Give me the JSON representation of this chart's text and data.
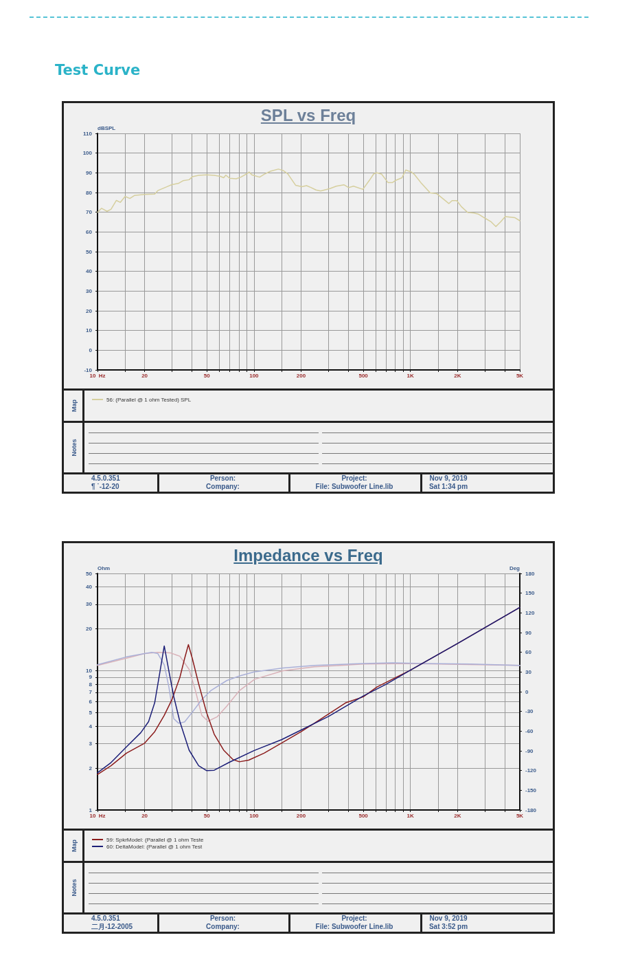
{
  "chart_data": [
    {
      "type": "line",
      "title": "SPL vs Freq",
      "ylabel": "dBSPL",
      "log": "x",
      "grid": true,
      "legend": "bottom",
      "marker": "none",
      "line_style": "solid",
      "xlim": [
        10,
        5000
      ],
      "xticks": [
        {
          "value": 10,
          "label": "10  Hz"
        },
        {
          "value": 15,
          "label": null
        },
        20,
        {
          "value": 30,
          "label": null
        },
        {
          "value": 40,
          "label": null
        },
        50,
        {
          "value": 60,
          "label": null
        },
        {
          "value": 70,
          "label": null
        },
        {
          "value": 80,
          "label": null
        },
        {
          "value": 90,
          "label": null
        },
        100,
        {
          "value": 150,
          "label": null
        },
        200,
        {
          "value": 300,
          "label": null
        },
        {
          "value": 400,
          "label": null
        },
        500,
        {
          "value": 600,
          "label": null
        },
        {
          "value": 700,
          "label": null
        },
        {
          "value": 800,
          "label": null
        },
        {
          "value": 900,
          "label": null
        },
        {
          "value": 1000,
          "label": "1K"
        },
        {
          "value": 1500,
          "label": null
        },
        {
          "value": 2000,
          "label": "2K"
        },
        {
          "value": 3000,
          "label": null
        },
        {
          "value": 4000,
          "label": null
        },
        {
          "value": 5000,
          "label": "5K"
        }
      ],
      "ylim": [
        -10,
        110
      ],
      "yticks": [
        -10,
        0,
        10,
        20,
        30,
        40,
        50,
        60,
        70,
        80,
        90,
        100,
        110
      ],
      "series": [
        {
          "name": "56: (Parallel @ 1 ohm Tested) SPL",
          "color": "#d6cf9e",
          "x": [
            10,
            10.6,
            11.5,
            12.2,
            13.2,
            14,
            15,
            16.1,
            17.2,
            20,
            23.2,
            24.3,
            27.9,
            29.9,
            32.8,
            35.2,
            38.5,
            40.4,
            44.3,
            49.7,
            55.7,
            61.1,
            64,
            66.1,
            70.1,
            76.9,
            82.4,
            90.4,
            93.3,
            96.8,
            108.6,
            116.4,
            127.6,
            143.2,
            153.5,
            164.4,
            184.5,
            202.3,
            216.8,
            232.3,
            248.9,
            266.7,
            306,
            335.7,
            376.7,
            403.6,
            432.5,
            496.6,
            544.5,
            583.4,
            611,
            654.6,
            717.8,
            769.1,
            805.4,
            883,
            933,
            1014,
            1062,
            1164,
            1337,
            1466,
            1607,
            1762,
            1845,
            1977,
            2118,
            2323,
            2547,
            2729,
            2992,
            3281,
            3516,
            3767,
            4036,
            4634,
            5000
          ],
          "values": [
            70,
            72,
            70.5,
            71.5,
            76,
            75,
            78,
            77,
            78.5,
            79,
            79.2,
            81,
            83,
            84,
            84.6,
            86,
            86.5,
            88,
            88.7,
            89,
            88.7,
            88.2,
            87.5,
            88.8,
            87.2,
            87,
            87.8,
            89.6,
            90.4,
            89,
            87.8,
            89.3,
            90.8,
            91.9,
            91.2,
            89.5,
            83.7,
            83,
            83.5,
            82.5,
            81.3,
            80.8,
            82,
            83.2,
            83.9,
            82.5,
            83.2,
            81.6,
            86,
            89.5,
            90,
            89.3,
            85.1,
            85.1,
            86.2,
            87.5,
            91.4,
            90.4,
            89.1,
            85.1,
            79.8,
            79.5,
            77,
            74.4,
            75.9,
            75.9,
            72.8,
            69.9,
            69.6,
            69,
            67,
            65.1,
            62.7,
            65.1,
            67.8,
            67.3,
            65.7
          ]
        }
      ],
      "annotations": [
        "Test Curve",
        "Map",
        "Notes",
        "4.5.0.351",
        "¶  ˙-12-20",
        "Person:",
        "Company:",
        "Project:",
        "File: Subwoofer Line.lib",
        "Nov  9, 2019",
        "Sat  1:34 pm"
      ]
    },
    {
      "type": "line",
      "title": "Impedance vs Freq",
      "ylabel": "Ohm",
      "y2label": "Deg",
      "log": "xy",
      "grid": true,
      "legend": "bottom",
      "marker": "none",
      "line_style": "solid",
      "xlim": [
        10,
        5000
      ],
      "xticks": [
        {
          "value": 10,
          "label": "10  Hz"
        },
        {
          "value": 15,
          "label": null
        },
        20,
        {
          "value": 30,
          "label": null
        },
        {
          "value": 40,
          "label": null
        },
        50,
        {
          "value": 60,
          "label": null
        },
        {
          "value": 70,
          "label": null
        },
        {
          "value": 80,
          "label": null
        },
        {
          "value": 90,
          "label": null
        },
        100,
        {
          "value": 150,
          "label": null
        },
        200,
        {
          "value": 300,
          "label": null
        },
        {
          "value": 400,
          "label": null
        },
        500,
        {
          "value": 600,
          "label": null
        },
        {
          "value": 700,
          "label": null
        },
        {
          "value": 800,
          "label": null
        },
        {
          "value": 900,
          "label": null
        },
        {
          "value": 1000,
          "label": "1K"
        },
        {
          "value": 1500,
          "label": null
        },
        {
          "value": 2000,
          "label": "2K"
        },
        {
          "value": 3000,
          "label": null
        },
        {
          "value": 4000,
          "label": null
        },
        {
          "value": 5000,
          "label": "5K"
        }
      ],
      "ylim": [
        1,
        50
      ],
      "yticks": [
        1,
        2,
        3,
        4,
        5,
        6,
        7,
        8,
        9,
        10,
        20,
        30,
        40,
        50
      ],
      "y2lim": [
        -180,
        180
      ],
      "y2ticks": [
        -180,
        -150,
        -120,
        -90,
        -60,
        -30,
        0,
        30,
        60,
        90,
        120,
        150,
        180
      ],
      "series": [
        {
          "color": "#d9b1b8",
          "axis": "y2",
          "x": [
            10,
            15.3,
            20,
            24.3,
            29.3,
            33.6,
            38.5,
            42.2,
            46.4,
            50.8,
            58.3,
            67,
            81,
            101,
            153.5,
            243,
            500,
            970,
            5000
          ],
          "values": [
            40,
            51,
            58,
            60,
            59,
            54,
            34,
            2,
            -36,
            -45,
            -38,
            -22,
            2,
            19,
            32,
            38,
            42,
            43,
            40
          ]
        },
        {
          "color": "#aab0d8",
          "axis": "y2",
          "x": [
            10,
            15.3,
            20,
            22.2,
            24.3,
            26.7,
            28.6,
            30.7,
            33,
            36,
            40.4,
            46.4,
            53.2,
            67,
            81,
            100,
            153.5,
            243,
            500,
            769,
            1220,
            2430,
            5000
          ],
          "values": [
            41,
            53,
            58,
            60,
            58,
            41,
            7,
            -41,
            -48,
            -46,
            -31,
            -12,
            2,
            17,
            24,
            30,
            36,
            40,
            43,
            44,
            43,
            42,
            40
          ]
        },
        {
          "name": "59: SpkrModel: (Parallel @ 1 ohm Teste",
          "color": "#8b1c1c",
          "x": [
            10,
            12.2,
            15.3,
            20,
            23.2,
            26.7,
            29.9,
            33.6,
            36,
            38.1,
            40.4,
            44.3,
            49.7,
            55.7,
            64,
            73.5,
            80.7,
            92.5,
            116,
            153.5,
            200,
            243,
            386,
            500,
            611,
            1000,
            2000,
            5000
          ],
          "values": [
            1.8,
            2.08,
            2.56,
            3.02,
            3.65,
            4.78,
            6.21,
            8.95,
            12.2,
            15.4,
            12.2,
            8.06,
            5.04,
            3.5,
            2.69,
            2.3,
            2.22,
            2.28,
            2.56,
            3.07,
            3.65,
            4.2,
            5.89,
            6.5,
            7.65,
            10.1,
            15.7,
            28.5
          ]
        },
        {
          "name": "60: DeltaModel: (Parallel @ 1 ohm Test",
          "color": "#1c1f78",
          "x": [
            10,
            12.2,
            15.3,
            18.9,
            21.2,
            23.2,
            24.9,
            26.7,
            28.6,
            30.7,
            33.6,
            38.5,
            44.3,
            49.7,
            55.7,
            70.1,
            100,
            150,
            200,
            300,
            500,
            700,
            1000,
            2000,
            5000
          ],
          "values": [
            1.85,
            2.19,
            2.84,
            3.59,
            4.31,
            5.89,
            9.42,
            15.07,
            9.93,
            6.54,
            4.31,
            2.69,
            2.08,
            1.92,
            1.93,
            2.21,
            2.67,
            3.2,
            3.75,
            4.7,
            6.6,
            8,
            10.1,
            15.7,
            28.5
          ]
        }
      ],
      "annotations": [
        "Map",
        "Notes",
        "4.5.0.351",
        "二月-12-2005",
        "Person:",
        "Company:",
        "Project:",
        "File: Subwoofer Line.lib",
        "Nov  9, 2019",
        "Sat  3:52 pm"
      ]
    }
  ]
}
